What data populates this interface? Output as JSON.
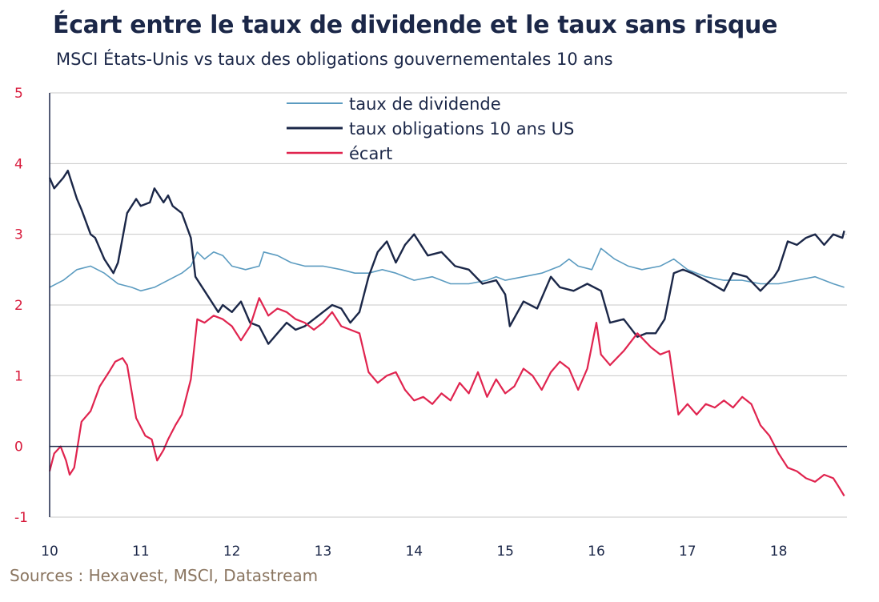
{
  "title": "Écart entre le taux de dividende et le taux sans risque",
  "subtitle": "MSCI États-Unis vs taux des obligations gouvernementales 10 ans",
  "source": "Sources : Hexavest, MSCI, Datastream",
  "colors": {
    "dividend": "#5b9bc0",
    "bond": "#1b2748",
    "spread": "#e0244f",
    "grid": "#c8c8c8",
    "axis": "#1b2748",
    "yTick": "#d81b3c"
  },
  "chart_data": {
    "type": "line",
    "xlim": [
      2010,
      2018.75
    ],
    "ylim": [
      -1,
      5
    ],
    "yticks": [
      "5",
      "4",
      "3",
      "2",
      "1",
      "0",
      "-1"
    ],
    "xticks": [
      "10",
      "11",
      "12",
      "13",
      "14",
      "15",
      "16",
      "17",
      "18"
    ],
    "grid": true,
    "legend_position": "top-center",
    "series": [
      {
        "name": "taux de dividende",
        "color": "#5b9bc0",
        "x": [
          2010.0,
          2010.15,
          2010.3,
          2010.45,
          2010.6,
          2010.75,
          2010.9,
          2011.0,
          2011.15,
          2011.3,
          2011.45,
          2011.55,
          2011.62,
          2011.7,
          2011.8,
          2011.9,
          2012.0,
          2012.15,
          2012.3,
          2012.35,
          2012.5,
          2012.65,
          2012.8,
          2013.0,
          2013.2,
          2013.35,
          2013.5,
          2013.65,
          2013.8,
          2014.0,
          2014.2,
          2014.4,
          2014.6,
          2014.8,
          2014.9,
          2015.0,
          2015.2,
          2015.4,
          2015.6,
          2015.7,
          2015.8,
          2015.95,
          2016.05,
          2016.2,
          2016.35,
          2016.5,
          2016.7,
          2016.85,
          2017.0,
          2017.2,
          2017.4,
          2017.6,
          2017.8,
          2018.0,
          2018.2,
          2018.4,
          2018.6,
          2018.72
        ],
        "values": [
          2.25,
          2.35,
          2.5,
          2.55,
          2.45,
          2.3,
          2.25,
          2.2,
          2.25,
          2.35,
          2.45,
          2.55,
          2.75,
          2.65,
          2.75,
          2.7,
          2.55,
          2.5,
          2.55,
          2.75,
          2.7,
          2.6,
          2.55,
          2.55,
          2.5,
          2.45,
          2.45,
          2.5,
          2.45,
          2.35,
          2.4,
          2.3,
          2.3,
          2.35,
          2.4,
          2.35,
          2.4,
          2.45,
          2.55,
          2.65,
          2.55,
          2.5,
          2.8,
          2.65,
          2.55,
          2.5,
          2.55,
          2.65,
          2.5,
          2.4,
          2.35,
          2.35,
          2.3,
          2.3,
          2.35,
          2.4,
          2.3,
          2.25
        ]
      },
      {
        "name": "taux obligations 10 ans US",
        "color": "#1b2748",
        "x": [
          2010.0,
          2010.05,
          2010.15,
          2010.2,
          2010.3,
          2010.35,
          2010.45,
          2010.5,
          2010.6,
          2010.7,
          2010.75,
          2010.85,
          2010.95,
          2011.0,
          2011.1,
          2011.15,
          2011.25,
          2011.3,
          2011.35,
          2011.45,
          2011.55,
          2011.6,
          2011.7,
          2011.85,
          2011.9,
          2012.0,
          2012.1,
          2012.2,
          2012.3,
          2012.4,
          2012.5,
          2012.6,
          2012.7,
          2012.8,
          2012.9,
          2013.0,
          2013.1,
          2013.2,
          2013.3,
          2013.4,
          2013.5,
          2013.6,
          2013.7,
          2013.8,
          2013.9,
          2014.0,
          2014.15,
          2014.3,
          2014.45,
          2014.6,
          2014.75,
          2014.9,
          2015.0,
          2015.05,
          2015.2,
          2015.35,
          2015.5,
          2015.6,
          2015.75,
          2015.9,
          2016.05,
          2016.15,
          2016.3,
          2016.45,
          2016.55,
          2016.65,
          2016.75,
          2016.85,
          2016.95,
          2017.05,
          2017.2,
          2017.4,
          2017.5,
          2017.65,
          2017.8,
          2017.95,
          2018.0,
          2018.1,
          2018.2,
          2018.3,
          2018.4,
          2018.5,
          2018.6,
          2018.7,
          2018.72
        ],
        "values": [
          3.8,
          3.65,
          3.8,
          3.9,
          3.5,
          3.35,
          3.0,
          2.95,
          2.65,
          2.45,
          2.6,
          3.3,
          3.5,
          3.4,
          3.45,
          3.65,
          3.45,
          3.55,
          3.4,
          3.3,
          2.95,
          2.4,
          2.2,
          1.9,
          2.0,
          1.9,
          2.05,
          1.75,
          1.7,
          1.45,
          1.6,
          1.75,
          1.65,
          1.7,
          1.8,
          1.9,
          2.0,
          1.95,
          1.75,
          1.9,
          2.4,
          2.75,
          2.9,
          2.6,
          2.85,
          3.0,
          2.7,
          2.75,
          2.55,
          2.5,
          2.3,
          2.35,
          2.15,
          1.7,
          2.05,
          1.95,
          2.4,
          2.25,
          2.2,
          2.3,
          2.2,
          1.75,
          1.8,
          1.55,
          1.6,
          1.6,
          1.8,
          2.45,
          2.5,
          2.45,
          2.35,
          2.2,
          2.45,
          2.4,
          2.2,
          2.4,
          2.5,
          2.9,
          2.85,
          2.95,
          3.0,
          2.85,
          3.0,
          2.95,
          3.05
        ]
      },
      {
        "name": "écart",
        "color": "#e0244f",
        "x": [
          2010.0,
          2010.05,
          2010.12,
          2010.18,
          2010.22,
          2010.27,
          2010.35,
          2010.45,
          2010.55,
          2010.65,
          2010.72,
          2010.8,
          2010.85,
          2010.95,
          2011.05,
          2011.12,
          2011.18,
          2011.25,
          2011.3,
          2011.38,
          2011.45,
          2011.55,
          2011.62,
          2011.7,
          2011.8,
          2011.9,
          2012.0,
          2012.1,
          2012.2,
          2012.3,
          2012.4,
          2012.5,
          2012.6,
          2012.7,
          2012.8,
          2012.9,
          2013.0,
          2013.1,
          2013.2,
          2013.3,
          2013.4,
          2013.5,
          2013.6,
          2013.7,
          2013.8,
          2013.9,
          2014.0,
          2014.1,
          2014.2,
          2014.3,
          2014.4,
          2014.5,
          2014.6,
          2014.7,
          2014.8,
          2014.9,
          2015.0,
          2015.1,
          2015.2,
          2015.3,
          2015.4,
          2015.5,
          2015.6,
          2015.7,
          2015.8,
          2015.9,
          2016.0,
          2016.05,
          2016.15,
          2016.3,
          2016.45,
          2016.6,
          2016.7,
          2016.8,
          2016.9,
          2017.0,
          2017.1,
          2017.2,
          2017.3,
          2017.4,
          2017.5,
          2017.6,
          2017.7,
          2017.8,
          2017.9,
          2018.0,
          2018.1,
          2018.2,
          2018.3,
          2018.4,
          2018.5,
          2018.6,
          2018.65,
          2018.72
        ],
        "values": [
          -0.35,
          -0.1,
          0.0,
          -0.2,
          -0.4,
          -0.3,
          0.35,
          0.5,
          0.85,
          1.05,
          1.2,
          1.25,
          1.15,
          0.4,
          0.15,
          0.1,
          -0.2,
          -0.05,
          0.1,
          0.3,
          0.45,
          0.95,
          1.8,
          1.75,
          1.85,
          1.8,
          1.7,
          1.5,
          1.7,
          2.1,
          1.85,
          1.95,
          1.9,
          1.8,
          1.75,
          1.65,
          1.75,
          1.9,
          1.7,
          1.65,
          1.6,
          1.05,
          0.9,
          1.0,
          1.05,
          0.8,
          0.65,
          0.7,
          0.6,
          0.75,
          0.65,
          0.9,
          0.75,
          1.05,
          0.7,
          0.95,
          0.75,
          0.85,
          1.1,
          1.0,
          0.8,
          1.05,
          1.2,
          1.1,
          0.8,
          1.1,
          1.75,
          1.3,
          1.15,
          1.35,
          1.6,
          1.4,
          1.3,
          1.35,
          0.45,
          0.6,
          0.45,
          0.6,
          0.55,
          0.65,
          0.55,
          0.7,
          0.6,
          0.3,
          0.15,
          -0.1,
          -0.3,
          -0.35,
          -0.45,
          -0.5,
          -0.4,
          -0.45,
          -0.55,
          -0.7
        ]
      }
    ]
  }
}
